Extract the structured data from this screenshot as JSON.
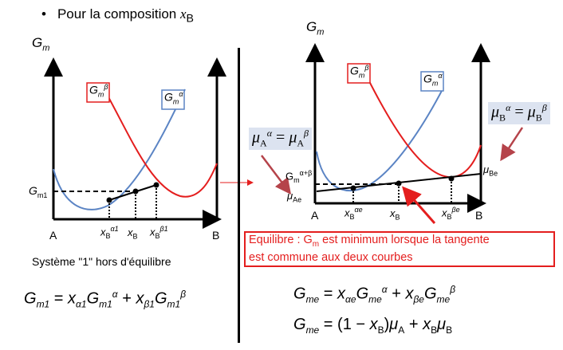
{
  "heading": {
    "bullet": "•",
    "text": "Pour la composition ",
    "var": "x",
    "sub": "B"
  },
  "left_diagram": {
    "axis_label_G": "G",
    "axis_label_sub": "m",
    "label_A": "A",
    "label_B": "B",
    "label_Gm1": "G",
    "label_Gm1_sub": "m1",
    "beta_box": {
      "main": "G",
      "sub": "m",
      "sup": "β"
    },
    "alpha_box": {
      "main": "G",
      "sub": "m",
      "sup": "α"
    },
    "tick_xa": {
      "main": "x",
      "sub": "B",
      "sup": "α1"
    },
    "tick_x": {
      "main": "x",
      "sub": "B"
    },
    "tick_xb": {
      "main": "x",
      "sub": "B",
      "sup": "β1"
    }
  },
  "system_label": "Système \"1\" hors d'équilibre",
  "right_diagram": {
    "axis_label_G": "G",
    "axis_label_sub": "m",
    "label_A": "A",
    "label_B": "B",
    "beta_box": {
      "main": "G",
      "sub": "m",
      "sup": "β"
    },
    "alpha_box": {
      "main": "G",
      "sub": "m",
      "sup": "α"
    },
    "gm_ab": {
      "main": "G",
      "sub": "m",
      "sup": "α+β"
    },
    "mu_Ae": {
      "main": "μ",
      "sub": "Ae"
    },
    "mu_Be": {
      "main": "μ",
      "sub": "Be"
    },
    "tick_xa": {
      "main": "x",
      "sub": "B",
      "sup": "αe"
    },
    "tick_x": {
      "main": "x",
      "sub": "B"
    },
    "tick_xb": {
      "main": "x",
      "sub": "B",
      "sup": "βe"
    }
  },
  "mu_A_eq": {
    "lhs": "μ",
    "lhs_sub": "A",
    "lhs_sup": "α",
    "eq": " = ",
    "rhs": "μ",
    "rhs_sub": "A",
    "rhs_sup": "β"
  },
  "mu_B_eq": {
    "lhs": "μ",
    "lhs_sub": "B",
    "lhs_sup": "α",
    "eq": " = ",
    "rhs": "μ",
    "rhs_sub": "B",
    "rhs_sup": "β"
  },
  "note": {
    "line1_pre": "Equilibre : G",
    "line1_sub": "m",
    "line1_post": " est minimum lorsque la tangente",
    "line2": "est commune aux deux courbes"
  },
  "eq_left": {
    "G": "G",
    "Gsub": "m1",
    "eq": " = ",
    "x1": "x",
    "x1sub": "α1",
    "G1": "G",
    "G1sub": "m1",
    "G1sup": "α",
    "plus": " + ",
    "x2": "x",
    "x2sub": "β1",
    "G2": "G",
    "G2sub": "m1",
    "G2sup": "β"
  },
  "eq_right1": {
    "G": "G",
    "Gsub": "me",
    "eq": " = ",
    "x1": "x",
    "x1sub": "αe",
    "G1": "G",
    "G1sub": "me",
    "G1sup": "α",
    "plus": " + ",
    "x2": "x",
    "x2sub": "βe",
    "G2": "G",
    "G2sub": "me",
    "G2sup": "β"
  },
  "eq_right2": {
    "G": "G",
    "Gsub": "me",
    "eq": " = (1 − ",
    "x": "x",
    "xsub": "B",
    "mid": ")",
    "mu1": "μ",
    "mu1sub": "A",
    "plus": " + ",
    "x2": "x",
    "x2sub": "B",
    "mu2": "μ",
    "mu2sub": "B"
  },
  "colors": {
    "alpha_curve": "#5b84c4",
    "beta_curve": "#e41e1e",
    "arrow": "#b5434a",
    "mu_bg": "#dce3f0"
  }
}
